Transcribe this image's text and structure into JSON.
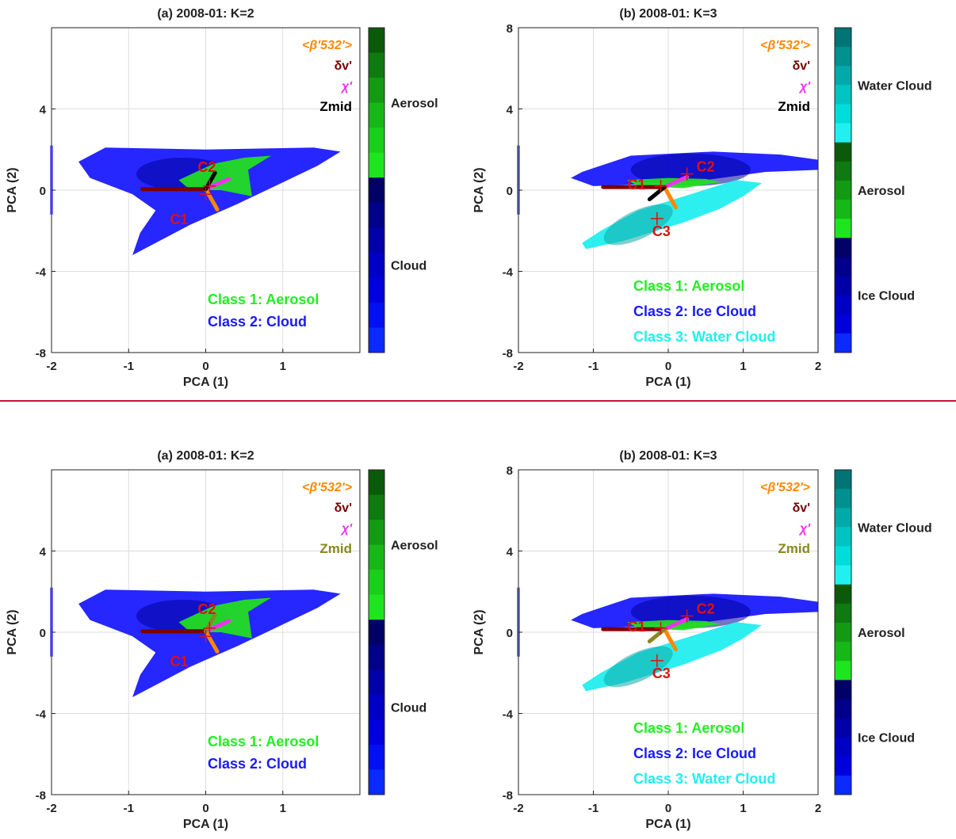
{
  "chart_data": [
    {
      "type": "scatter",
      "title": "(a) 2008-01: K=2",
      "xlabel": "PCA (1)",
      "ylabel": "PCA (2)",
      "xlim": [
        -2,
        2
      ],
      "ylim": [
        -8,
        8
      ],
      "xticks": [
        "-2",
        "-1",
        "0",
        "1"
      ],
      "yticks": [
        "-8",
        "-4",
        "0",
        "4"
      ],
      "grid": true,
      "centroids": [
        {
          "label": "C1",
          "x": 0.0,
          "y": -0.2
        },
        {
          "label": "C2",
          "x": 0.05,
          "y": 0.2
        }
      ],
      "variable_labels": [
        "<β'532'>",
        "δv'",
        "χ'",
        "Zmid"
      ],
      "legend": [
        {
          "label": "Class 1: Aerosol",
          "color": "#22ee22"
        },
        {
          "label": "Class 2: Cloud",
          "color": "#1a1aff"
        }
      ],
      "colorbar": [
        {
          "label": "Aerosol",
          "colors": [
            "#0a5a0a",
            "#0f7a0f",
            "#139a13",
            "#16b816",
            "#19d019",
            "#1ee61e"
          ]
        },
        {
          "label": "Cloud",
          "colors": [
            "#000066",
            "#00008a",
            "#0000a8",
            "#0000c4",
            "#0000dc",
            "#0010f0",
            "#0a2aff"
          ]
        }
      ]
    },
    {
      "type": "scatter",
      "title": "(b) 2008-01: K=3",
      "xlabel": "PCA (1)",
      "ylabel": "PCA (2)",
      "xlim": [
        -2,
        2
      ],
      "ylim": [
        -8,
        8
      ],
      "xticks": [
        "-2",
        "-1",
        "0",
        "1",
        "2"
      ],
      "yticks": [
        "-8",
        "-4",
        "0",
        "4",
        "8"
      ],
      "grid": true,
      "centroids": [
        {
          "label": "C1",
          "x": -0.1,
          "y": 0.2
        },
        {
          "label": "C2",
          "x": 0.25,
          "y": 0.8
        },
        {
          "label": "C3",
          "x": -0.15,
          "y": -1.4
        }
      ],
      "variable_labels": [
        "<β'532'>",
        "δv'",
        "χ'",
        "Zmid"
      ],
      "legend": [
        {
          "label": "Class 1: Aerosol",
          "color": "#22ee22"
        },
        {
          "label": "Class 2: Ice Cloud",
          "color": "#1a1aff"
        },
        {
          "label": "Class 3: Water Cloud",
          "color": "#22eeee"
        }
      ],
      "colorbar": [
        {
          "label": "Water Cloud",
          "colors": [
            "#007575",
            "#009090",
            "#00aaaa",
            "#00c4c4",
            "#00dcdc",
            "#22f0f0"
          ]
        },
        {
          "label": "Aerosol",
          "colors": [
            "#0a5a0a",
            "#0f7a0f",
            "#139a13",
            "#16b816",
            "#1ee61e"
          ]
        },
        {
          "label": "Ice Cloud",
          "colors": [
            "#000066",
            "#00008a",
            "#0000a8",
            "#0000c4",
            "#0000dc",
            "#0a2aff"
          ]
        }
      ]
    },
    {
      "type": "scatter",
      "title": "(a) 2008-01: K=2",
      "xlabel": "PCA (1)",
      "ylabel": "PCA (2)",
      "xlim": [
        -2,
        2
      ],
      "ylim": [
        -8,
        8
      ],
      "xticks": [
        "-2",
        "-1",
        "0",
        "1"
      ],
      "yticks": [
        "-8",
        "-4",
        "0",
        "4"
      ],
      "grid": true,
      "centroids": [
        {
          "label": "C1",
          "x": 0.0,
          "y": -0.2
        },
        {
          "label": "C2",
          "x": 0.05,
          "y": 0.2
        }
      ],
      "variable_labels": [
        "<β'532'>",
        "δv'",
        "χ'",
        "Zmid"
      ],
      "legend": [
        {
          "label": "Class 1: Aerosol",
          "color": "#22ee22"
        },
        {
          "label": "Class 2: Cloud",
          "color": "#1a1aff"
        }
      ],
      "colorbar": [
        {
          "label": "Aerosol",
          "colors": [
            "#0a5a0a",
            "#0f7a0f",
            "#139a13",
            "#16b816",
            "#19d019",
            "#1ee61e"
          ]
        },
        {
          "label": "Cloud",
          "colors": [
            "#000066",
            "#00008a",
            "#0000a8",
            "#0000c4",
            "#0000dc",
            "#0010f0",
            "#0a2aff"
          ]
        }
      ]
    },
    {
      "type": "scatter",
      "title": "(b) 2008-01: K=3",
      "xlabel": "PCA (1)",
      "ylabel": "PCA (2)",
      "xlim": [
        -2,
        2
      ],
      "ylim": [
        -8,
        8
      ],
      "xticks": [
        "-2",
        "-1",
        "0",
        "1",
        "2"
      ],
      "yticks": [
        "-8",
        "-4",
        "0",
        "4",
        "8"
      ],
      "grid": true,
      "centroids": [
        {
          "label": "C1",
          "x": -0.1,
          "y": 0.2
        },
        {
          "label": "C2",
          "x": 0.25,
          "y": 0.8
        },
        {
          "label": "C3",
          "x": -0.15,
          "y": -1.4
        }
      ],
      "variable_labels": [
        "<β'532'>",
        "δv'",
        "χ'",
        "Zmid"
      ],
      "legend": [
        {
          "label": "Class 1: Aerosol",
          "color": "#22ee22"
        },
        {
          "label": "Class 2: Ice Cloud",
          "color": "#1a1aff"
        },
        {
          "label": "Class 3: Water Cloud",
          "color": "#22eeee"
        }
      ],
      "colorbar": [
        {
          "label": "Water Cloud",
          "colors": [
            "#007575",
            "#009090",
            "#00aaaa",
            "#00c4c4",
            "#00dcdc",
            "#22f0f0"
          ]
        },
        {
          "label": "Aerosol",
          "colors": [
            "#0a5a0a",
            "#0f7a0f",
            "#139a13",
            "#16b816",
            "#1ee61e"
          ]
        },
        {
          "label": "Ice Cloud",
          "colors": [
            "#000066",
            "#00008a",
            "#0000a8",
            "#0000c4",
            "#0000dc",
            "#0a2aff"
          ]
        }
      ]
    }
  ],
  "colors": {
    "divider": "#c0143c",
    "centroid": "#dd1111",
    "arrow_backscatter": "#ff8800",
    "arrow_depol": "#7a0000",
    "arrow_color_ratio": "#ee33ee",
    "arrow_zmid_top": "#000000",
    "arrow_zmid_bottom": "#888822"
  }
}
